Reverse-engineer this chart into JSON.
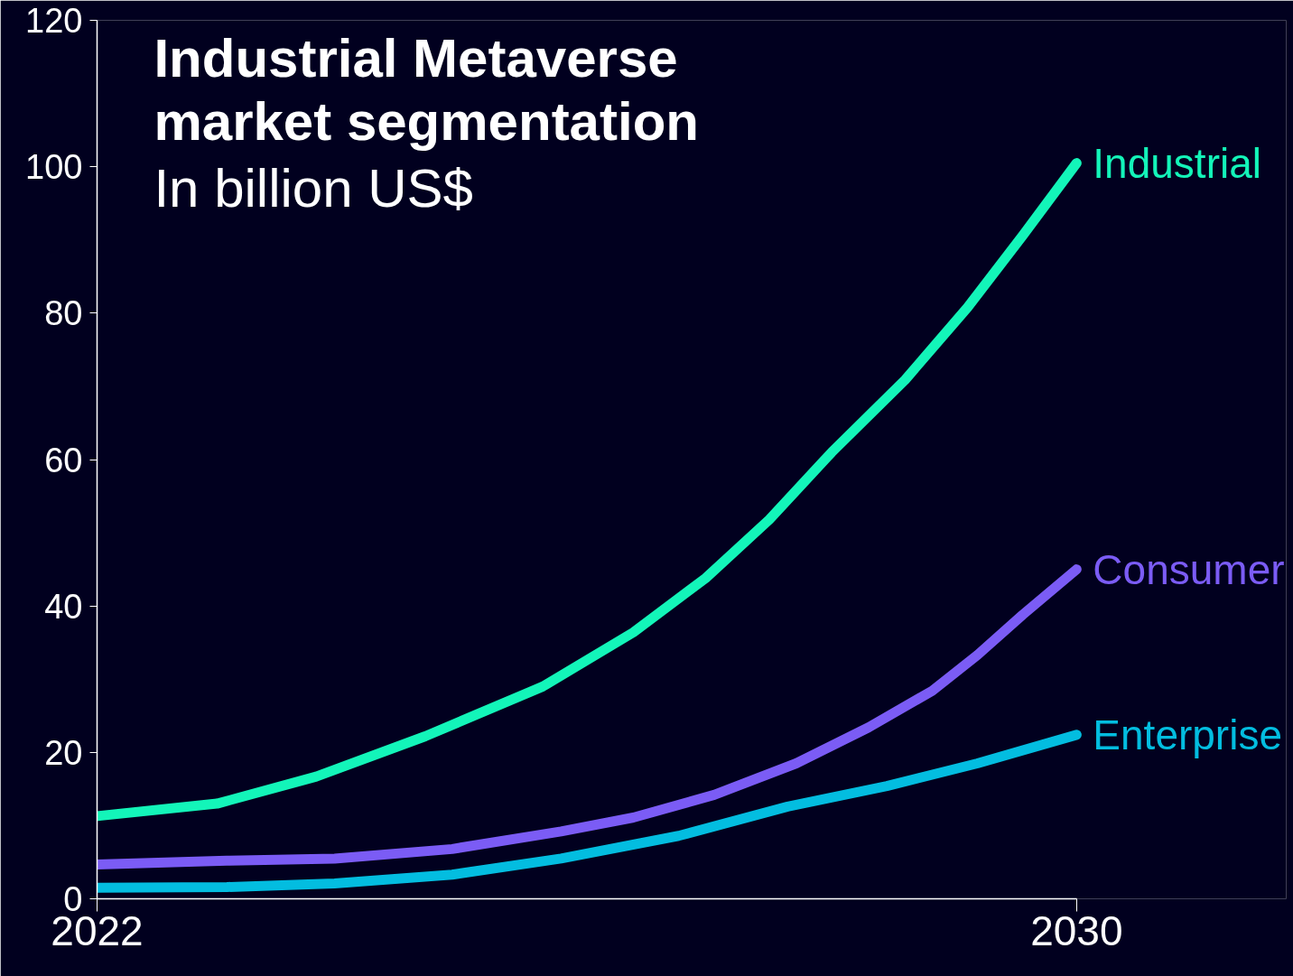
{
  "chart_data": {
    "type": "line",
    "title": "Industrial Metaverse\nmarket segmentation",
    "subtitle": "In billion US$",
    "xlim": [
      2022,
      2030
    ],
    "xticks": [
      2022,
      2030
    ],
    "ylim": [
      0,
      120
    ],
    "yticks": [
      0,
      20,
      40,
      60,
      80,
      100,
      120
    ],
    "grid": false,
    "marker": "none",
    "line_style": "solid",
    "series": [
      {
        "name": "Industrial",
        "color": "#13f5b9",
        "x": [
          2022,
          2022.98,
          2023.79,
          2024.68,
          2025.64,
          2026.38,
          2026.97,
          2027.49,
          2028.0,
          2028.6,
          2029.11,
          2029.56,
          2030
        ],
        "values": [
          11.3,
          13,
          16.7,
          22.2,
          29,
          36.4,
          43.8,
          51.8,
          61,
          70.9,
          80.8,
          90.6,
          100.5
        ]
      },
      {
        "name": "Consumer",
        "color": "#7b5cf5",
        "x": [
          2022,
          2023.06,
          2023.94,
          2024.9,
          2025.79,
          2026.38,
          2027.04,
          2027.71,
          2028.3,
          2028.82,
          2029.19,
          2029.56,
          2030
        ],
        "values": [
          4.7,
          5.2,
          5.5,
          6.8,
          9.2,
          11.1,
          14.2,
          18.5,
          23.4,
          28.4,
          33.3,
          38.8,
          45
        ]
      },
      {
        "name": "Enterprise",
        "color": "#03bde0",
        "x": [
          2022,
          2023.06,
          2023.94,
          2024.9,
          2025.79,
          2026.75,
          2027.64,
          2028.45,
          2029.19,
          2030
        ],
        "values": [
          1.5,
          1.6,
          2.1,
          3.3,
          5.5,
          8.6,
          12.6,
          15.4,
          18.5,
          22.4
        ]
      }
    ]
  }
}
